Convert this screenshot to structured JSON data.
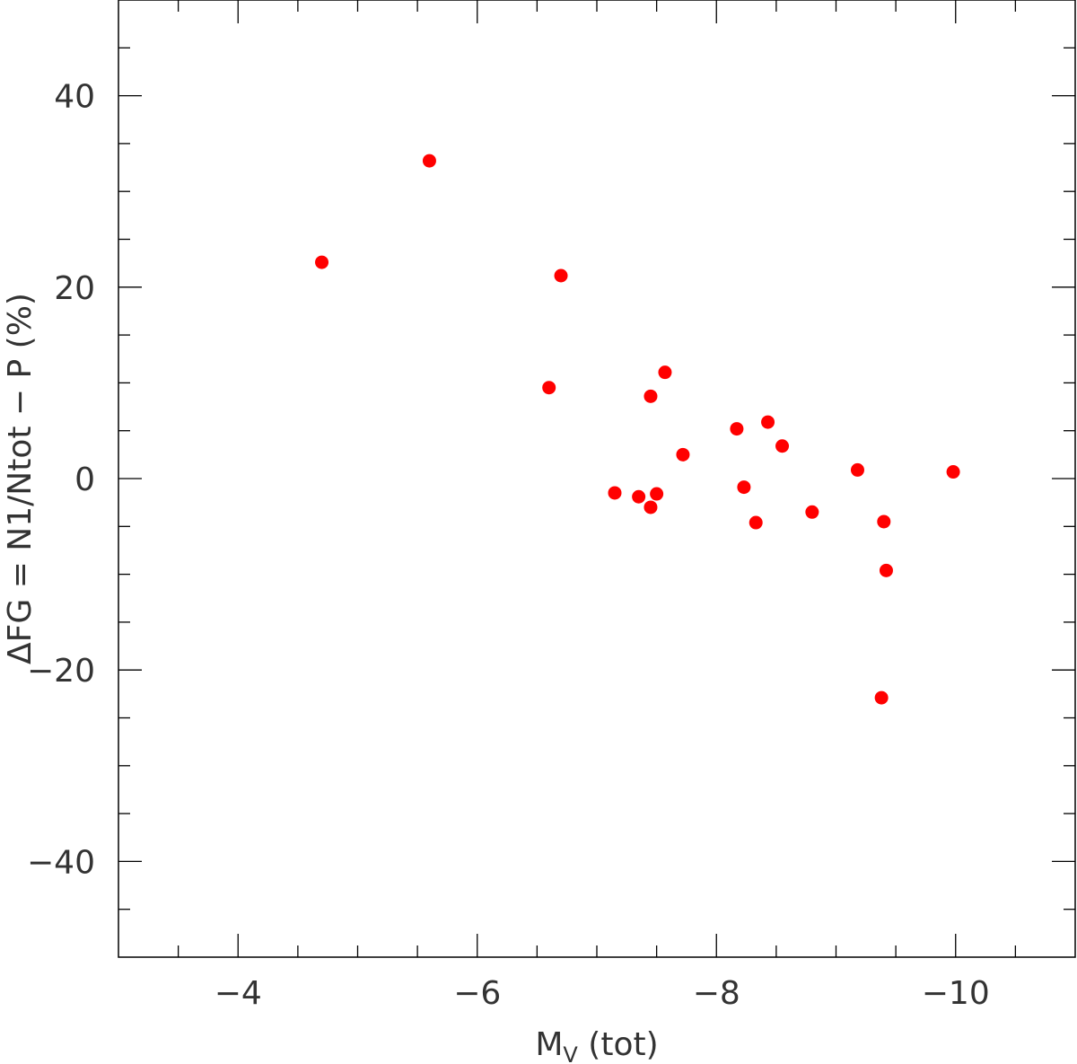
{
  "chart_data": {
    "type": "scatter",
    "title": "",
    "xlabel": {
      "main": "M",
      "sub": "V",
      "rest": " (tot)"
    },
    "ylabel": "ΔFG = N1/Ntot − P (%)",
    "xlim": [
      -3,
      -11
    ],
    "ylim": [
      -50,
      50
    ],
    "x_reversed": true,
    "x_ticks": [
      -4,
      -6,
      -8,
      -10
    ],
    "x_tick_labels": [
      "−4",
      "−6",
      "−8",
      "−10"
    ],
    "y_ticks": [
      -40,
      -20,
      0,
      20,
      40
    ],
    "y_tick_labels": [
      "−40",
      "−20",
      "0",
      "20",
      "40"
    ],
    "grid": false,
    "marker_color": "#ff0000",
    "series": [
      {
        "points": [
          {
            "x": -4.7,
            "y": 22.6
          },
          {
            "x": -5.6,
            "y": 33.2
          },
          {
            "x": -6.6,
            "y": 9.5
          },
          {
            "x": -6.7,
            "y": 21.2
          },
          {
            "x": -7.15,
            "y": -1.5
          },
          {
            "x": -7.35,
            "y": -1.9
          },
          {
            "x": -7.45,
            "y": 8.6
          },
          {
            "x": -7.45,
            "y": -3.0
          },
          {
            "x": -7.5,
            "y": -1.6
          },
          {
            "x": -7.57,
            "y": 11.1
          },
          {
            "x": -7.72,
            "y": 2.5
          },
          {
            "x": -8.17,
            "y": 5.2
          },
          {
            "x": -8.23,
            "y": -0.9
          },
          {
            "x": -8.33,
            "y": -4.6
          },
          {
            "x": -8.43,
            "y": 5.9
          },
          {
            "x": -8.55,
            "y": 3.4
          },
          {
            "x": -8.8,
            "y": -3.5
          },
          {
            "x": -9.18,
            "y": 0.9
          },
          {
            "x": -9.4,
            "y": -4.5
          },
          {
            "x": -9.42,
            "y": -9.6
          },
          {
            "x": -9.38,
            "y": -22.9
          },
          {
            "x": -9.98,
            "y": 0.7
          }
        ]
      }
    ]
  }
}
